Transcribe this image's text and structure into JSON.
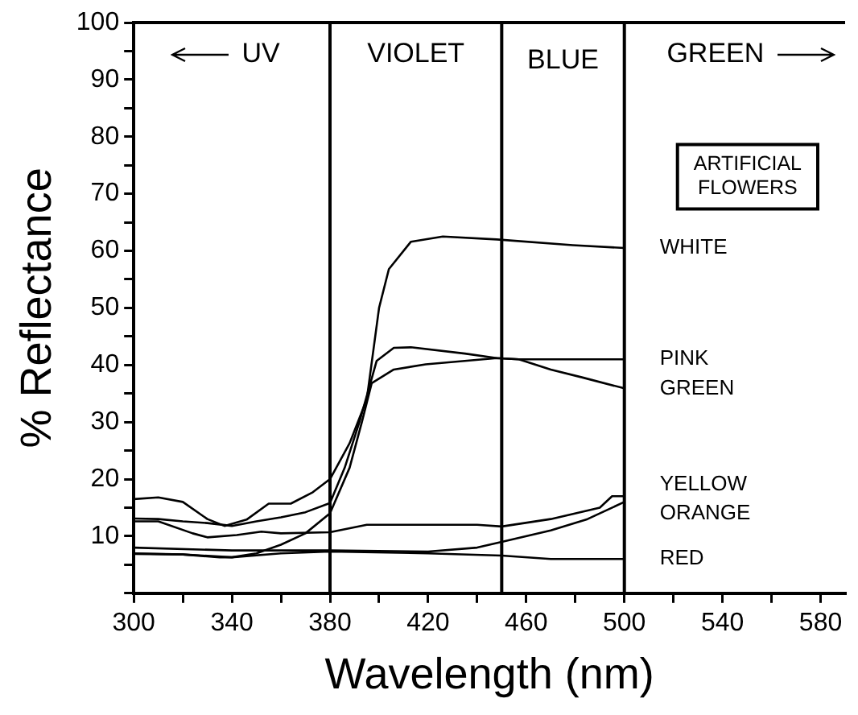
{
  "chart_data": {
    "type": "line",
    "xlabel": "Wavelength (nm)",
    "ylabel": "% Reflectance",
    "legend_title": "ARTIFICIAL FLOWERS",
    "xlim": [
      300,
      590
    ],
    "ylim": [
      0,
      100
    ],
    "xticks": [
      300,
      {
        "value": 320,
        "label": null
      },
      340,
      {
        "value": 360,
        "label": null
      },
      380,
      {
        "value": 400,
        "label": null
      },
      420,
      {
        "value": 440,
        "label": null
      },
      460,
      {
        "value": 480,
        "label": null
      },
      500,
      {
        "value": 520,
        "label": null
      },
      540,
      {
        "value": 560,
        "label": null
      },
      580
    ],
    "yticks": [
      {
        "value": 0,
        "label": null
      },
      {
        "value": 5,
        "label": null
      },
      10,
      {
        "value": 15,
        "label": null
      },
      20,
      {
        "value": 25,
        "label": null
      },
      30,
      {
        "value": 35,
        "label": null
      },
      40,
      {
        "value": 45,
        "label": null
      },
      50,
      {
        "value": 55,
        "label": null
      },
      60,
      {
        "value": 65,
        "label": null
      },
      70,
      {
        "value": 75,
        "label": null
      },
      80,
      {
        "value": 85,
        "label": null
      },
      90,
      {
        "value": 95,
        "label": null
      },
      100
    ],
    "grid": false,
    "marker": "none",
    "line_style": "solid",
    "series": [
      {
        "name": "WHITE",
        "color": "#000000",
        "x": [
          300,
          310,
          320,
          330,
          337,
          346,
          355,
          364,
          373,
          380,
          388,
          395,
          400,
          404,
          413,
          426,
          448,
          479,
          500
        ],
        "values": [
          16.5,
          16.8,
          16,
          13,
          11.8,
          12.9,
          15.7,
          15.7,
          17.7,
          20,
          26.3,
          34,
          50,
          56.8,
          61.6,
          62.5,
          62,
          61,
          60.5
        ]
      },
      {
        "name": "PINK",
        "color": "#000000",
        "x": [
          300,
          310,
          320,
          330,
          340,
          350,
          360,
          370,
          380,
          386,
          392,
          399,
          406,
          413,
          435,
          448,
          457,
          500
        ],
        "values": [
          13.1,
          13,
          12.6,
          12.3,
          11.8,
          12.6,
          13.3,
          14.2,
          15.8,
          22,
          30,
          40.7,
          43,
          43.1,
          42,
          41.2,
          41,
          41
        ]
      },
      {
        "name": "GREEN",
        "color": "#000000",
        "x": [
          300,
          320,
          335,
          340,
          350,
          360,
          370,
          380,
          388,
          393,
          397,
          406,
          419,
          448,
          457,
          470,
          483,
          500
        ],
        "values": [
          7,
          6.8,
          6.3,
          6.3,
          7,
          8.5,
          10.5,
          14,
          22,
          30,
          36.8,
          39.2,
          40.1,
          41.2,
          41,
          39.2,
          37.8,
          35.9
        ]
      },
      {
        "name": "YELLOW",
        "color": "#000000",
        "x": [
          300,
          310,
          324,
          330,
          342,
          352,
          360,
          380,
          395,
          440,
          450,
          470,
          490,
          495,
          500
        ],
        "values": [
          12.6,
          12.6,
          10.5,
          9.8,
          10.2,
          10.8,
          10.5,
          10.7,
          12,
          12,
          11.7,
          13,
          15,
          17,
          17
        ]
      },
      {
        "name": "ORANGE",
        "color": "#000000",
        "x": [
          300,
          340,
          380,
          420,
          440,
          450,
          470,
          485,
          500
        ],
        "values": [
          8,
          7.5,
          7.5,
          7.3,
          8,
          9,
          11,
          13,
          16
        ]
      },
      {
        "name": "RED",
        "color": "#000000",
        "x": [
          300,
          320,
          340,
          360,
          380,
          420,
          450,
          470,
          500
        ],
        "values": [
          6.9,
          6.8,
          6.3,
          7,
          7.3,
          7,
          6.6,
          6,
          6
        ]
      }
    ],
    "ref_lines": [
      {
        "axis": "x",
        "value": 380,
        "color": "#000000"
      },
      {
        "axis": "x",
        "value": 450,
        "color": "#000000"
      },
      {
        "axis": "x",
        "value": 500,
        "color": "#000000"
      }
    ],
    "annotations": [
      "UV",
      "VIOLET",
      "BLUE",
      "GREEN"
    ]
  }
}
